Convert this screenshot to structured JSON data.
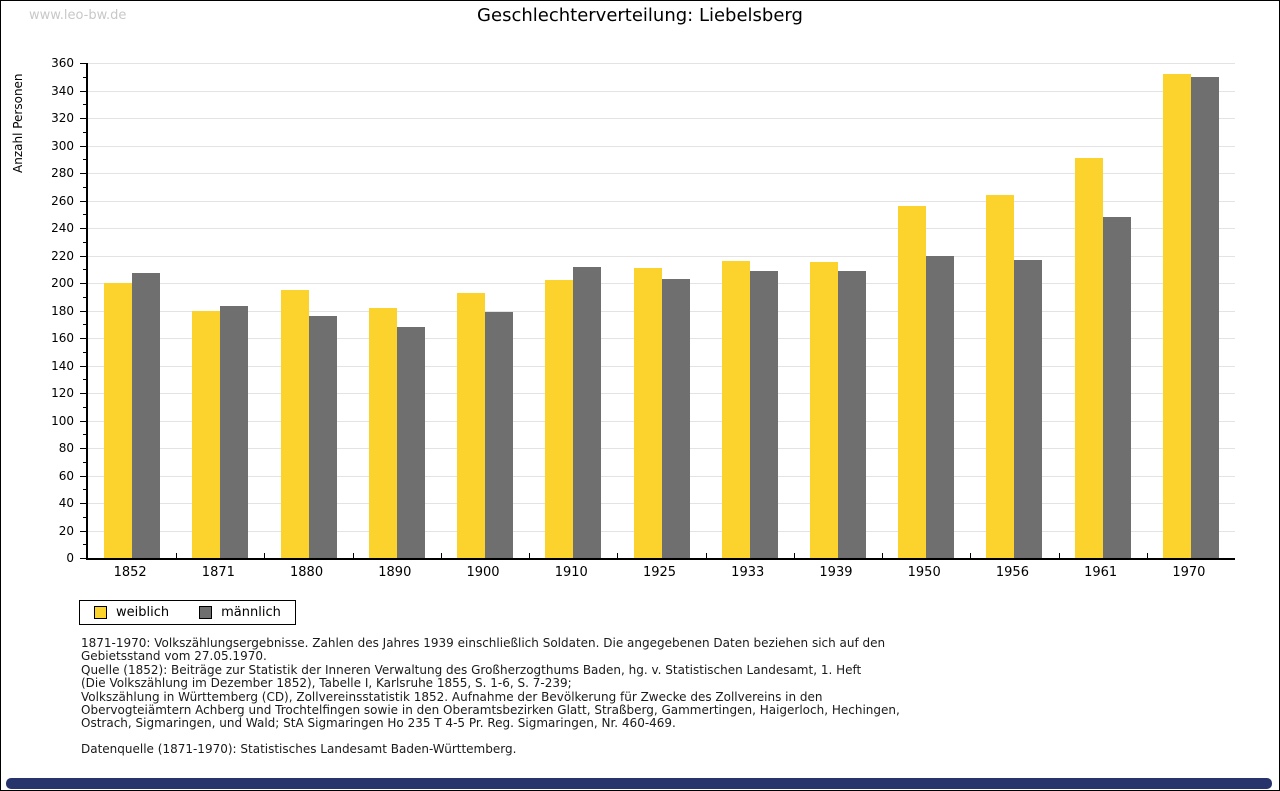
{
  "window": {
    "watermark": "www.leo-bw.de"
  },
  "chart_data": {
    "type": "bar",
    "title": "Geschlechterverteilung: Liebelsberg",
    "xlabel": "",
    "ylabel": "Anzahl Personen",
    "ylim": [
      0,
      360
    ],
    "y_tick_step": 20,
    "grid": true,
    "legend_position": "bottom-left",
    "categories": [
      "1852",
      "1871",
      "1880",
      "1890",
      "1900",
      "1910",
      "1925",
      "1933",
      "1939",
      "1950",
      "1956",
      "1961",
      "1970"
    ],
    "series": [
      {
        "name": "weiblich",
        "color": "#FCD32D",
        "values": [
          200,
          180,
          195,
          182,
          193,
          202,
          211,
          216,
          215,
          256,
          264,
          291,
          352
        ]
      },
      {
        "name": "männlich",
        "color": "#6F6F6F",
        "values": [
          207,
          183,
          176,
          168,
          179,
          212,
          203,
          209,
          209,
          220,
          217,
          248,
          350
        ]
      }
    ]
  },
  "footnotes": {
    "lines": [
      "1871-1970: Volkszählungsergebnisse. Zahlen des Jahres 1939 einschließlich Soldaten. Die angegebenen Daten beziehen sich auf den",
      "Gebietsstand vom 27.05.1970.",
      "Quelle (1852): Beiträge zur Statistik der Inneren Verwaltung des Großherzogthums Baden, hg. v. Statistischen Landesamt, 1. Heft",
      "(Die Volkszählung im Dezember 1852), Tabelle I, Karlsruhe 1855, S. 1-6, S. 7-239;",
      "Volkszählung in Württemberg (CD), Zollvereinsstatistik 1852. Aufnahme der Bevölkerung für Zwecke des Zollvereins in den",
      "Obervogteiämtern Achberg und Trochtelfingen sowie in den Oberamtsbezirken Glatt, Straßberg, Gammertingen, Haigerloch, Hechingen,",
      "Ostrach, Sigmaringen, und Wald; StA Sigmaringen Ho 235 T 4-5 Pr. Reg. Sigmaringen, Nr. 460-469."
    ],
    "datasource": "Datenquelle (1871-1970): Statistisches Landesamt Baden-Württemberg."
  },
  "colors": {
    "background": "#ffffff",
    "gridline": "#e3e3e3",
    "axis": "#000000",
    "watermark": "#c8c8c8",
    "bottom_bar": "#27336b"
  }
}
